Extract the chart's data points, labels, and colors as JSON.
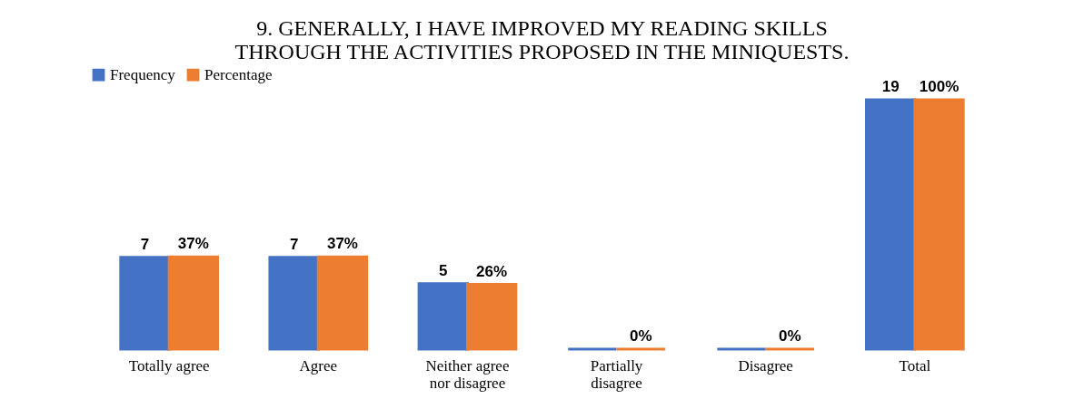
{
  "chart_data": {
    "type": "bar",
    "title": [
      "9.    GENERALLY, I HAVE IMPROVED MY READING SKILLS",
      "THROUGH THE ACTIVITIES PROPOSED IN THE MINIQUESTS."
    ],
    "categories": [
      "Totally agree",
      "Agree",
      "Neither agree\nnor disagree",
      "Partially\ndisagree",
      "Disagree",
      "Total"
    ],
    "series": [
      {
        "name": "Frequency",
        "color": "#4472c4",
        "values": [
          7,
          7,
          5,
          0,
          0,
          19
        ],
        "value_labels": [
          "7",
          "7",
          "5",
          null,
          null,
          "19"
        ]
      },
      {
        "name": "Percentage",
        "color": "#ed7d31",
        "axis": "y2",
        "values": [
          37,
          37,
          26,
          0,
          0,
          100
        ],
        "value_labels": [
          "37%",
          "37%",
          "26%",
          "0%",
          "0%",
          "100%"
        ]
      }
    ],
    "legend": "top",
    "grid": false
  }
}
